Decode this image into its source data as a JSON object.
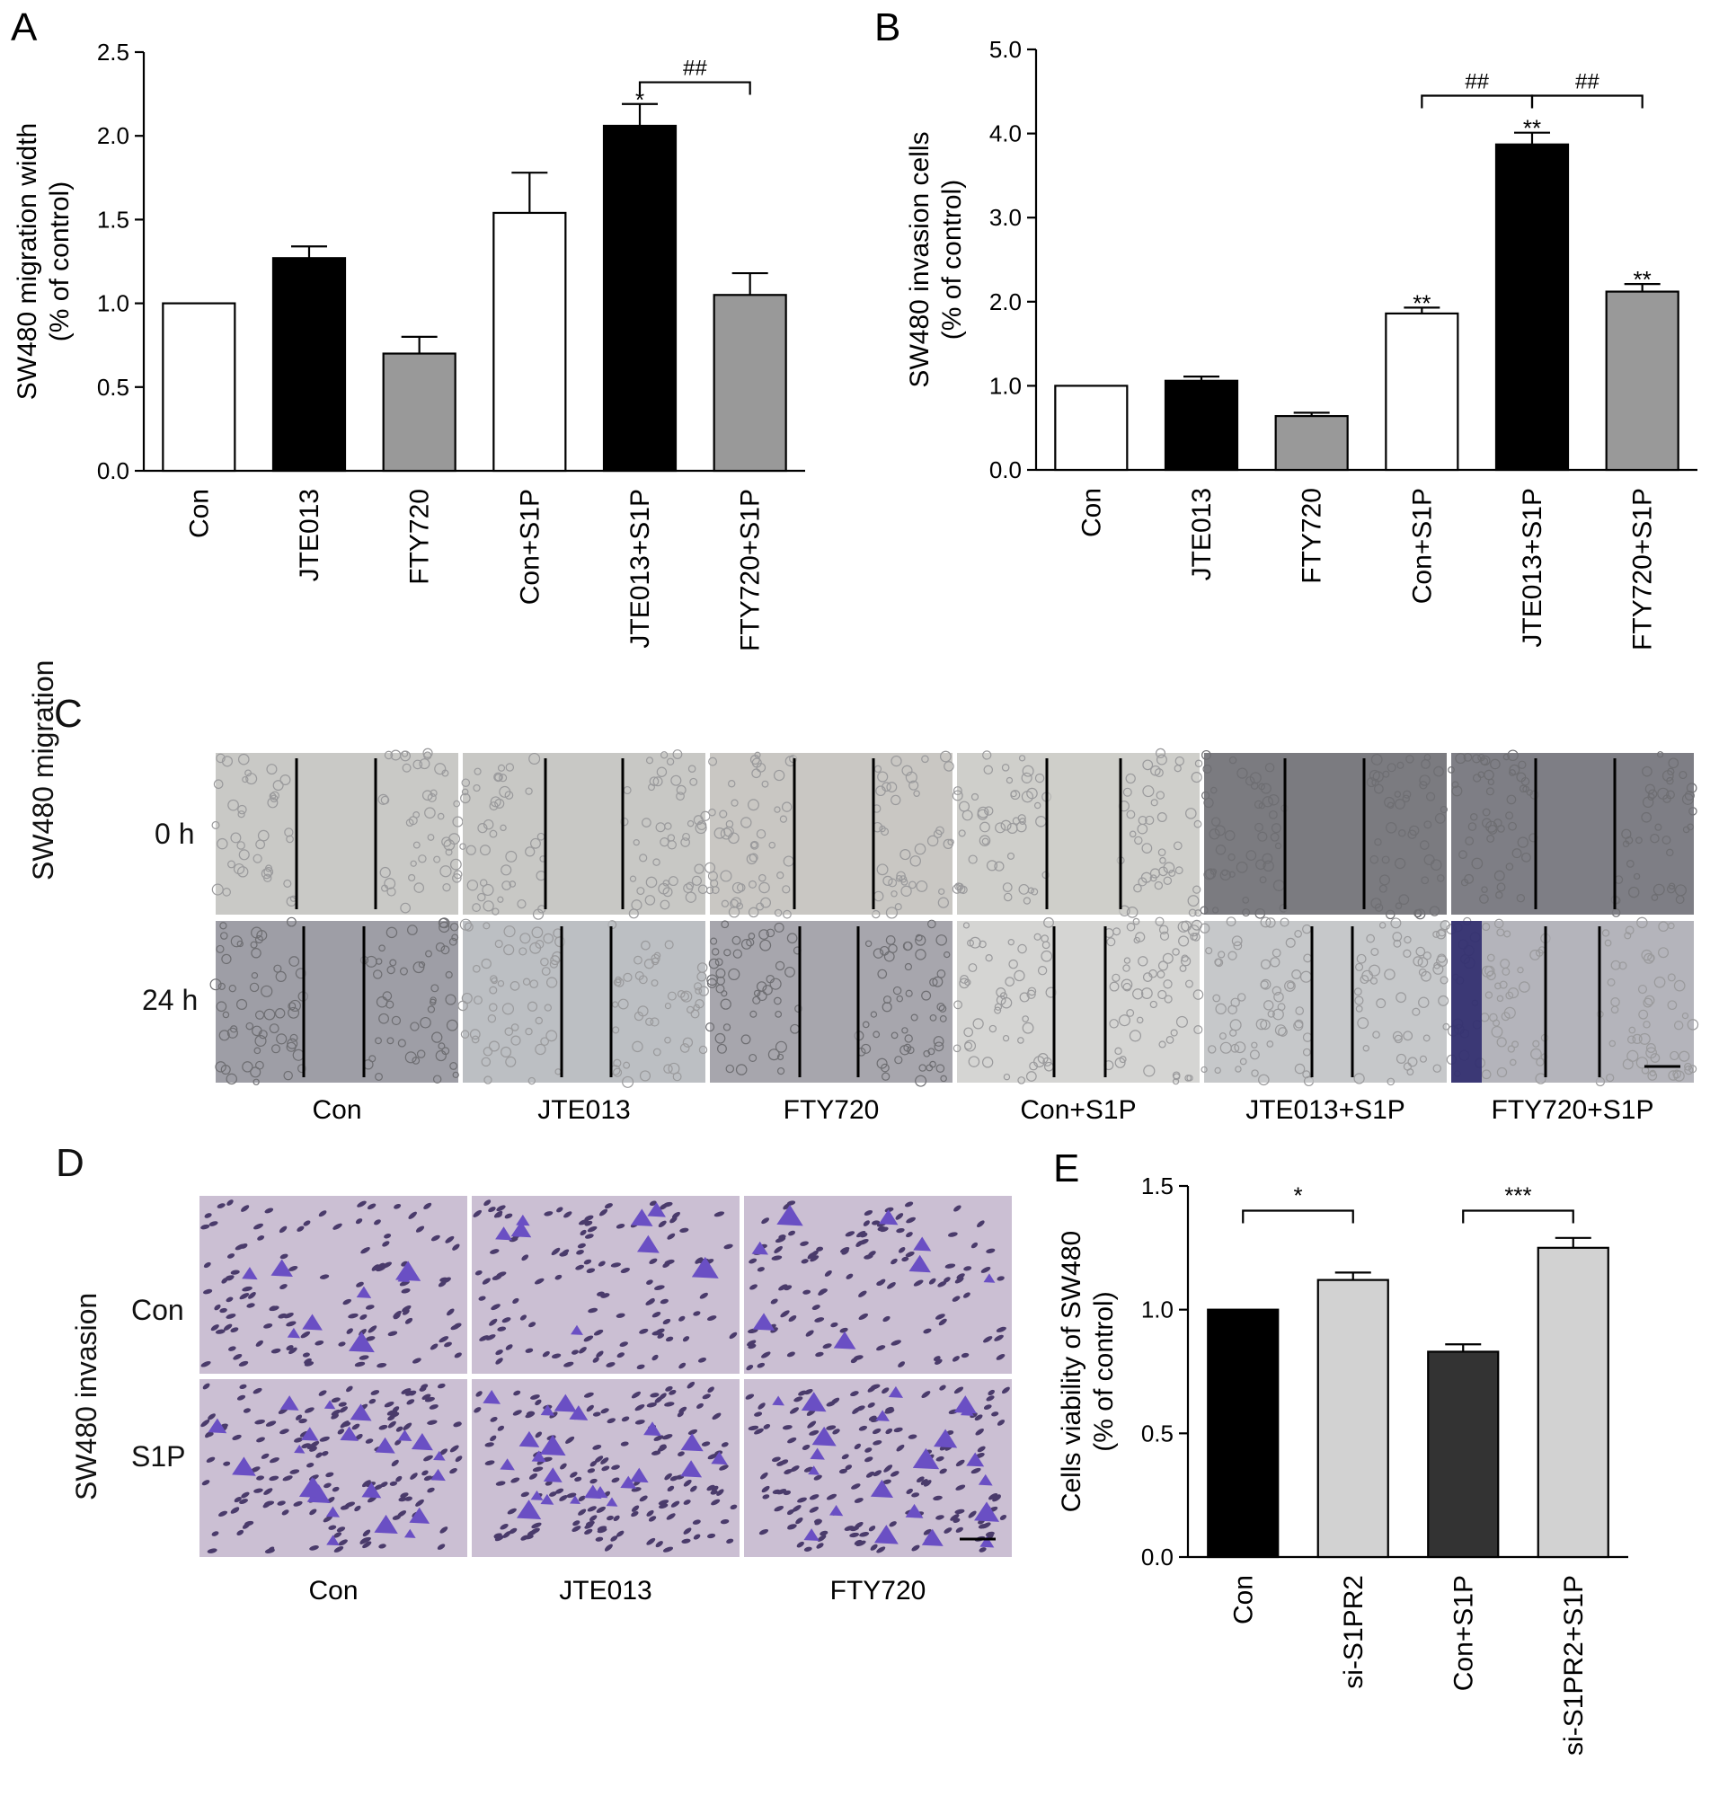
{
  "panels": {
    "A": {
      "letter": "A"
    },
    "B": {
      "letter": "B"
    },
    "C": {
      "letter": "C",
      "row_title": "SW480 migration",
      "rows": [
        "0 h",
        "24 h"
      ],
      "columns": [
        "Con",
        "JTE013",
        "FTY720",
        "Con+S1P",
        "JTE013+S1P",
        "FTY720+S1P"
      ]
    },
    "D": {
      "letter": "D",
      "row_title": "SW480 invasion",
      "rows": [
        "Con",
        "S1P"
      ],
      "columns": [
        "Con",
        "JTE013",
        "FTY720"
      ]
    },
    "E": {
      "letter": "E"
    }
  },
  "chart_data": [
    {
      "id": "A",
      "type": "bar",
      "categories": [
        "Con",
        "JTE013",
        "FTY720",
        "Con+S1P",
        "JTE013+S1P",
        "FTY720+S1P"
      ],
      "values": [
        1.0,
        1.27,
        0.7,
        1.54,
        2.06,
        1.05
      ],
      "errors": [
        0,
        0.07,
        0.1,
        0.24,
        0.13,
        0.13
      ],
      "bar_colors": [
        "#ffffff",
        "#000000",
        "#999999",
        "#ffffff",
        "#000000",
        "#999999"
      ],
      "significance": [
        "",
        "",
        "",
        "",
        "*",
        ""
      ],
      "brackets": [
        {
          "from": 4,
          "to": 5,
          "label": "##"
        }
      ],
      "ylabel": "SW480 migration width",
      "ylabel2": "(% of control)",
      "ylim": [
        0,
        2.5
      ],
      "yticks": [
        "0.0",
        "0.5",
        "1.0",
        "1.5",
        "2.0",
        "2.5"
      ]
    },
    {
      "id": "B",
      "type": "bar",
      "categories": [
        "Con",
        "JTE013",
        "FTY720",
        "Con+S1P",
        "JTE013+S1P",
        "FTY720+S1P"
      ],
      "values": [
        1.0,
        1.06,
        0.64,
        1.86,
        3.87,
        2.12
      ],
      "errors": [
        0,
        0.05,
        0.04,
        0.07,
        0.14,
        0.09
      ],
      "bar_colors": [
        "#ffffff",
        "#000000",
        "#999999",
        "#ffffff",
        "#000000",
        "#999999"
      ],
      "significance": [
        "",
        "",
        "",
        "**",
        "**",
        "**"
      ],
      "brackets": [
        {
          "from": 3,
          "to": 4,
          "label": "##"
        },
        {
          "from": 4,
          "to": 5,
          "label": "##"
        }
      ],
      "ylabel": "SW480 invasion cells",
      "ylabel2": "(% of control)",
      "ylim": [
        0,
        5.0
      ],
      "yticks": [
        "0.0",
        "1.0",
        "2.0",
        "3.0",
        "4.0",
        "5.0"
      ]
    },
    {
      "id": "E",
      "type": "bar",
      "categories": [
        "Con",
        "si-S1PR2",
        "Con+S1P",
        "si-S1PR2+S1P"
      ],
      "values": [
        1.0,
        1.12,
        0.83,
        1.25
      ],
      "errors": [
        0,
        0.03,
        0.03,
        0.04
      ],
      "bar_colors": [
        "#000000",
        "#d2d2d2",
        "#333333",
        "#d2d2d2"
      ],
      "significance": [
        "",
        "",
        "",
        ""
      ],
      "brackets": [
        {
          "from": 0,
          "to": 1,
          "label": "*"
        },
        {
          "from": 2,
          "to": 3,
          "label": "***"
        }
      ],
      "ylabel": "Cells viability of SW480",
      "ylabel2": "(% of control)",
      "ylim": [
        0,
        1.5
      ],
      "yticks": [
        "0.0",
        "0.5",
        "1.0",
        "1.5"
      ]
    }
  ],
  "micrographs": {
    "migration_tints_0h": [
      "#c9c9c6",
      "#c8c8c5",
      "#c9c7c3",
      "#cfcfcb",
      "#7b7b80",
      "#7e7e85"
    ],
    "migration_tints_24h": [
      "#9e9ea6",
      "#bcbfc3",
      "#a7a6ad",
      "#d5d5d3",
      "#c6c8ca",
      "#b4b4bb"
    ],
    "invasion_tint": "#cbbfd3",
    "cell_color": "#4a3b6b",
    "stained_cell_color": "#6a4fc4"
  }
}
